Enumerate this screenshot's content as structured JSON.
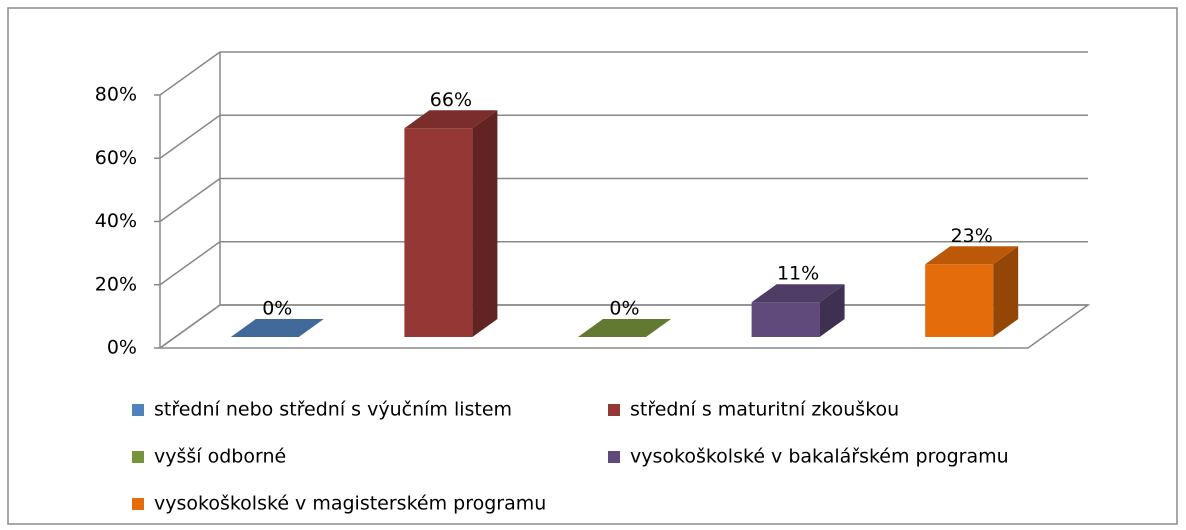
{
  "chart_data": {
    "type": "bar3d",
    "series": [
      {
        "name": "střední nebo střední s výučním listem",
        "color": "#4f81bd",
        "values": [
          0
        ],
        "value_labels": [
          "0%"
        ]
      },
      {
        "name": "střední s maturitní zkouškou",
        "color": "#953735",
        "values": [
          66
        ],
        "value_labels": [
          "66%"
        ]
      },
      {
        "name": "vyšší odborné",
        "color": "#77933c",
        "values": [
          0
        ],
        "value_labels": [
          "0%"
        ]
      },
      {
        "name": "vysokoškolské v bakalářském programu",
        "color": "#604a7b",
        "values": [
          11
        ],
        "value_labels": [
          "11%"
        ]
      },
      {
        "name": "vysokoškolské v magisterském programu",
        "color": "#e46c0a",
        "values": [
          23
        ],
        "value_labels": [
          "23%"
        ]
      }
    ],
    "ylim": [
      0,
      80
    ],
    "yticks": [
      {
        "value": 0,
        "label": "0%"
      },
      {
        "value": 20,
        "label": "20%"
      },
      {
        "value": 40,
        "label": "40%"
      },
      {
        "value": 60,
        "label": "60%"
      },
      {
        "value": 80,
        "label": "80%"
      }
    ],
    "grid": true
  }
}
